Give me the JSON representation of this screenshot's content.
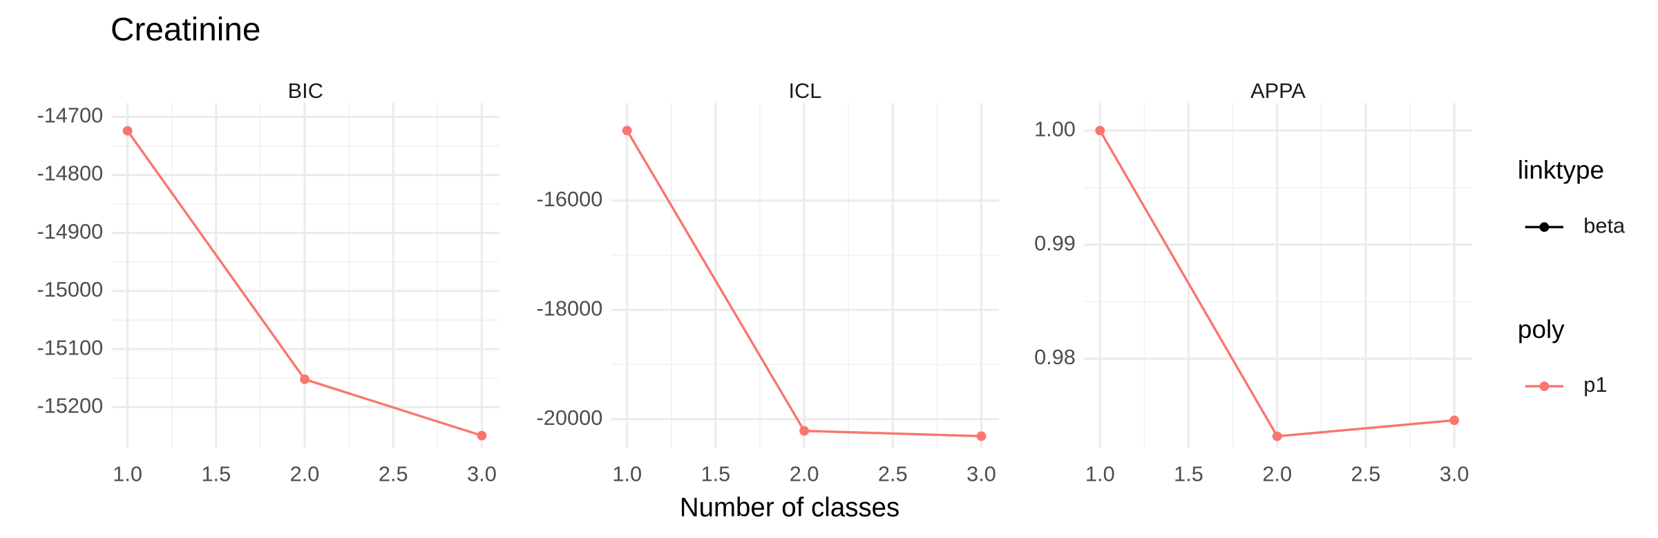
{
  "title": "Creatinine",
  "xlabel": "Number of classes",
  "legends": [
    {
      "title": "linktype",
      "entries": [
        {
          "label": "beta",
          "color": "#000000"
        }
      ]
    },
    {
      "title": "poly",
      "entries": [
        {
          "label": "p1",
          "color": "#F8766D"
        }
      ]
    }
  ],
  "chart_data": [
    {
      "type": "line",
      "title": "BIC",
      "x": [
        1,
        2,
        3
      ],
      "series": [
        {
          "name": "p1",
          "color": "#F8766D",
          "values": [
            -14724,
            -15152,
            -15249
          ]
        }
      ],
      "xlim": [
        0.91,
        3.1
      ],
      "xticks": [
        {
          "value": 1,
          "label": "1.0"
        },
        1.5,
        {
          "value": 2,
          "label": "2.0"
        },
        2.5,
        {
          "value": 3,
          "label": "3.0"
        }
      ],
      "ylim": [
        -15270,
        -14676
      ],
      "yticks": [
        -15200,
        -15100,
        -15000,
        -14900,
        -14800,
        -14700
      ],
      "grid": true
    },
    {
      "type": "line",
      "title": "ICL",
      "x": [
        1,
        2,
        3
      ],
      "series": [
        {
          "name": "p1",
          "color": "#F8766D",
          "values": [
            -14718,
            -20214,
            -20311
          ]
        }
      ],
      "xlim": [
        0.91,
        3.1
      ],
      "xticks": [
        {
          "value": 1,
          "label": "1.0"
        },
        1.5,
        {
          "value": 2,
          "label": "2.0"
        },
        2.5,
        {
          "value": 3,
          "label": "3.0"
        }
      ],
      "ylim": [
        -20524,
        -14213
      ],
      "yticks": [
        -20000,
        -18000,
        -16000
      ],
      "grid": true
    },
    {
      "type": "line",
      "title": "APPA",
      "x": [
        1,
        2,
        3
      ],
      "series": [
        {
          "name": "p1",
          "color": "#F8766D",
          "values": [
            1.0,
            0.9732,
            0.9746
          ]
        }
      ],
      "xlim": [
        0.91,
        3.1
      ],
      "xticks": [
        {
          "value": 1,
          "label": "1.0"
        },
        1.5,
        {
          "value": 2,
          "label": "2.0"
        },
        2.5,
        {
          "value": 3,
          "label": "3.0"
        }
      ],
      "ylim": [
        0.97219,
        1.00242
      ],
      "yticks": [
        0.98,
        0.99,
        {
          "value": 1,
          "label": "1.00"
        }
      ],
      "grid": true
    }
  ]
}
